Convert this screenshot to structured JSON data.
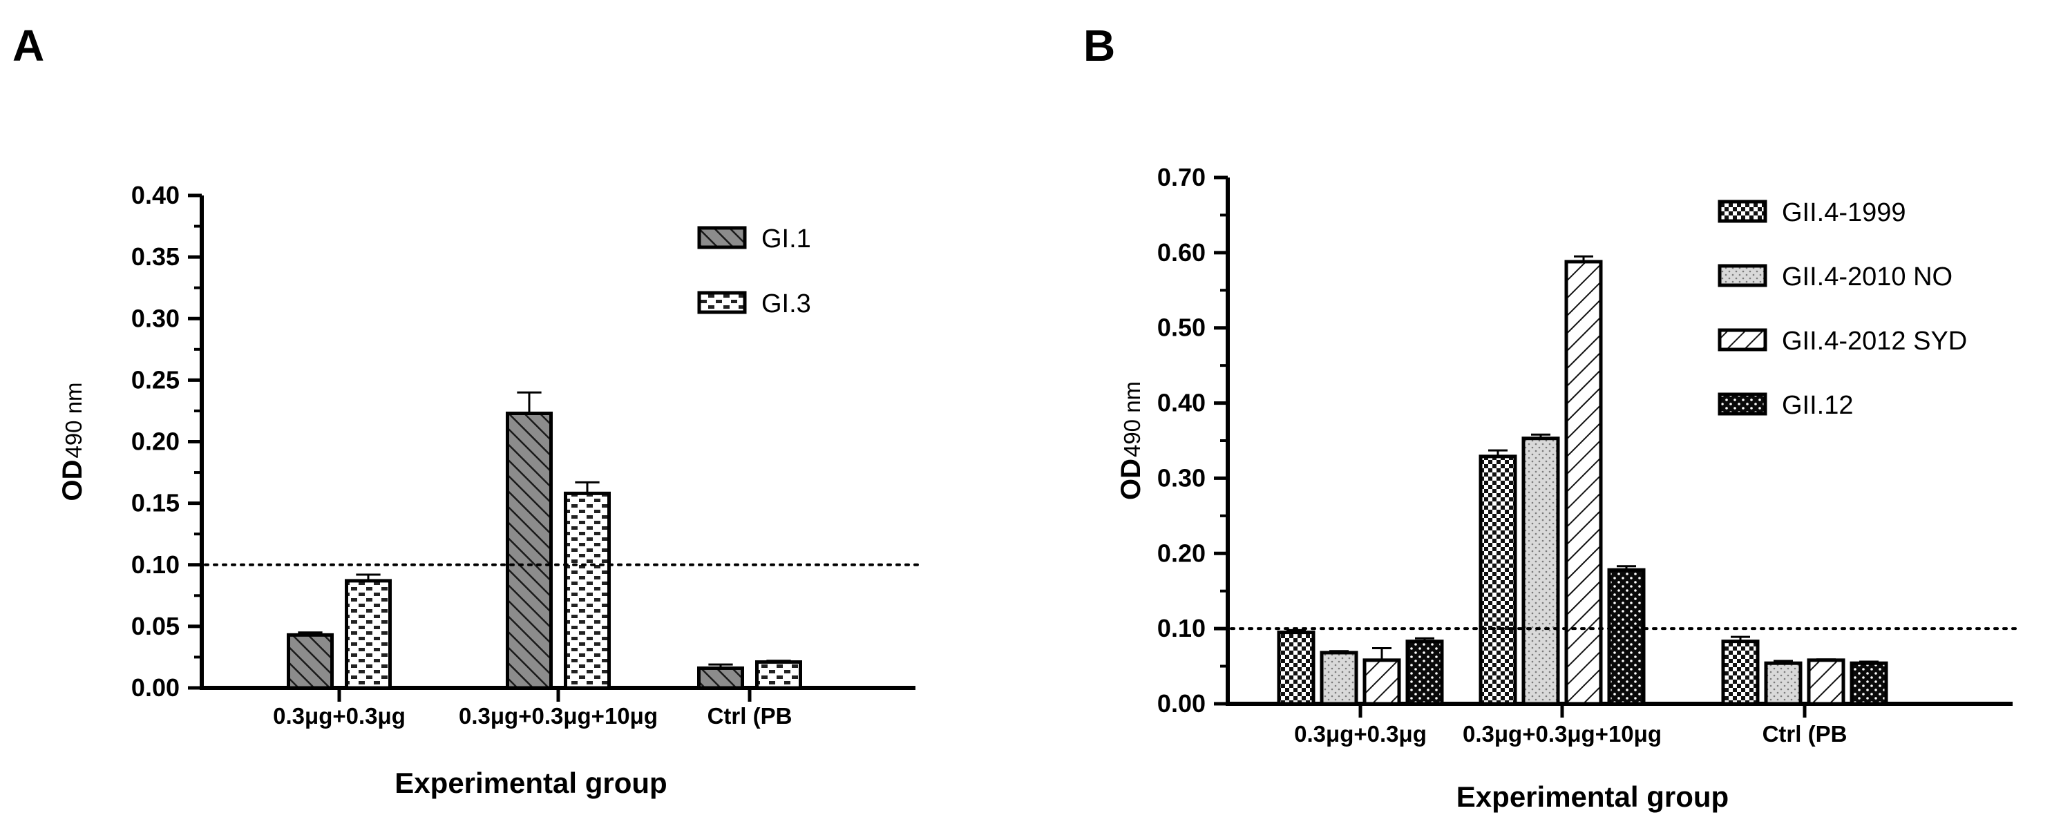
{
  "chart_data": [
    {
      "type": "bar",
      "panel_label": "A",
      "title": "",
      "categories": [
        "0.3μg+0.3μg",
        "0.3μg+0.3μg+10μg",
        "Ctrl (PB"
      ],
      "series": [
        {
          "name": "GI.1",
          "values": [
            0.043,
            0.223,
            0.016
          ],
          "errors": [
            0.002,
            0.017,
            0.003
          ],
          "pattern": "diag-gray"
        },
        {
          "name": "GI.3",
          "values": [
            0.087,
            0.158,
            0.021
          ],
          "errors": [
            0.005,
            0.009,
            0.001
          ],
          "pattern": "brick"
        }
      ],
      "xlabel": "Experimental group",
      "ylabel": "OD",
      "ylabel_sub": "490 nm",
      "ylim": [
        0,
        0.4
      ],
      "yticks": [
        "0.00",
        "0.05",
        "0.10",
        "0.15",
        "0.20",
        "0.25",
        "0.30",
        "0.35",
        "0.40"
      ],
      "cutoff": 0.1,
      "legend": "top-right"
    },
    {
      "type": "bar",
      "panel_label": "B",
      "title": "",
      "categories": [
        "0.3μg+0.3μg",
        "0.3μg+0.3μg+10μg",
        "Ctrl (PB"
      ],
      "series": [
        {
          "name": "GII.4-1999",
          "values": [
            0.095,
            0.329,
            0.083
          ],
          "errors": [
            0.003,
            0.008,
            0.006
          ],
          "pattern": "check"
        },
        {
          "name": "GII.4-2010 NO",
          "values": [
            0.068,
            0.353,
            0.054
          ],
          "errors": [
            0.002,
            0.005,
            0.003
          ],
          "pattern": "dots-gray"
        },
        {
          "name": "GII.4-2012 SYD",
          "values": [
            0.058,
            0.588,
            0.058
          ],
          "errors": [
            0.016,
            0.007,
            0.001
          ],
          "pattern": "diag-white"
        },
        {
          "name": "GII.12",
          "values": [
            0.083,
            0.178,
            0.054
          ],
          "errors": [
            0.004,
            0.005,
            0.002
          ],
          "pattern": "dots-black"
        }
      ],
      "xlabel": "Experimental group",
      "ylabel": "OD",
      "ylabel_sub": "490 nm",
      "ylim": [
        0,
        0.7
      ],
      "yticks": [
        "0.00",
        "0.10",
        "0.20",
        "0.30",
        "0.40",
        "0.50",
        "0.60",
        "0.70"
      ],
      "cutoff": 0.1,
      "legend": "top-right"
    }
  ]
}
